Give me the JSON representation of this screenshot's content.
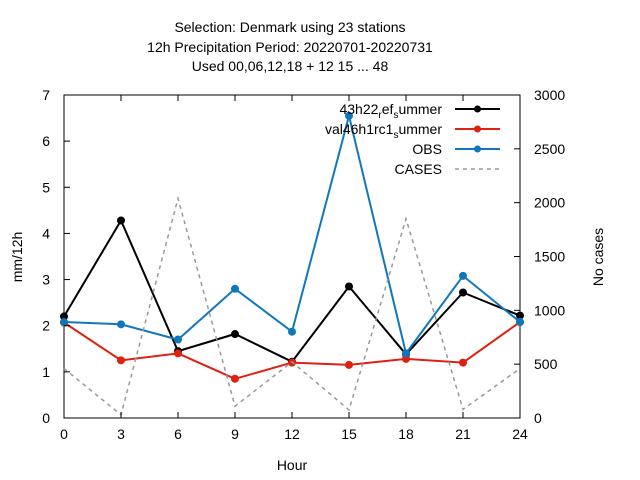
{
  "chart_data": {
    "type": "line",
    "title_lines": [
      "Selection: Denmark using    23 stations",
      "12h Precipitation   Period: 20220701-20220731",
      "Used  00,06,12,18  + 12 15 ... 48"
    ],
    "xlabel": "Hour",
    "ylabel": "mm/12h",
    "y2label": "No cases",
    "x": [
      0,
      3,
      6,
      9,
      12,
      15,
      18,
      21,
      24
    ],
    "xlim": [
      0,
      24
    ],
    "ylim": [
      0,
      7
    ],
    "y2lim": [
      0,
      3000
    ],
    "x_ticks": [
      0,
      3,
      6,
      9,
      12,
      15,
      18,
      21,
      24
    ],
    "y_ticks": [
      0,
      1,
      2,
      3,
      4,
      5,
      6,
      7
    ],
    "y2_ticks": [
      0,
      500,
      1000,
      1500,
      2000,
      2500,
      3000
    ],
    "grid": false,
    "legend_position": "top-right",
    "series": [
      {
        "name": "43h22_ref_summer",
        "legend_parts": [
          "43h22",
          "r",
          "ef",
          "s",
          "ummer"
        ],
        "color": "#000000",
        "axis": "y",
        "dashed": false,
        "markers": true,
        "values": [
          2.2,
          4.28,
          1.45,
          1.82,
          1.22,
          2.85,
          1.38,
          2.72,
          2.22
        ]
      },
      {
        "name": "val46h1rc1_summer",
        "legend_parts": [
          "val46h1rc1",
          "s",
          "ummer"
        ],
        "color": "#dd2211",
        "axis": "y",
        "dashed": false,
        "markers": true,
        "values": [
          2.07,
          1.25,
          1.4,
          0.85,
          1.2,
          1.15,
          1.28,
          1.2,
          2.08
        ]
      },
      {
        "name": "OBS",
        "legend_parts": [
          "OBS"
        ],
        "color": "#1177bb",
        "axis": "y",
        "dashed": false,
        "markers": true,
        "values": [
          2.08,
          2.03,
          1.7,
          2.8,
          1.87,
          6.55,
          1.4,
          3.08,
          2.08
        ]
      },
      {
        "name": "CASES",
        "legend_parts": [
          "CASES"
        ],
        "color": "#999999",
        "axis": "y2",
        "dashed": true,
        "markers": false,
        "values": [
          460,
          30,
          2040,
          110,
          520,
          75,
          1850,
          80,
          460
        ]
      }
    ]
  }
}
